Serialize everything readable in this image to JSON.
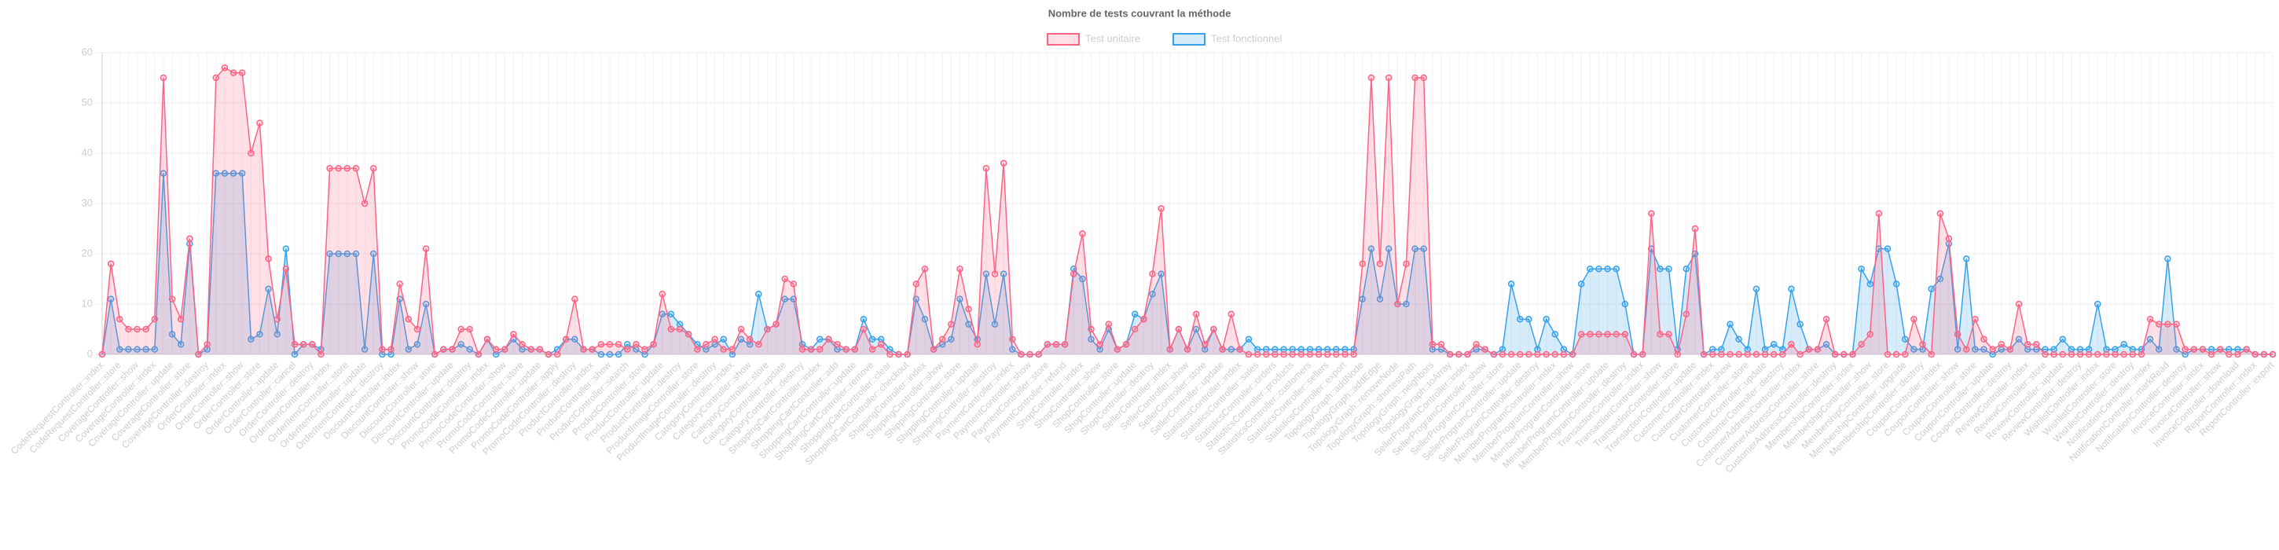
{
  "chart_data": {
    "type": "line",
    "title": "Nombre de tests couvrant la méthode",
    "legend": "top",
    "grid": true,
    "fill": true,
    "ylim": [
      0,
      60
    ],
    "yticks": [
      0,
      10,
      20,
      30,
      40,
      50,
      60
    ],
    "categories": [
      "CodeRequestController::index",
      null,
      "CodeRequestController::store",
      null,
      "CoverageController::show",
      null,
      "CoverageController::index",
      null,
      "CoverageController::update",
      null,
      "CoverageController::store",
      null,
      "CoverageController::destroy",
      null,
      "OrderController::index",
      null,
      "OrderController::show",
      null,
      "OrderController::store",
      null,
      "OrderController::update",
      null,
      "OrderController::cancel",
      null,
      "OrderController::destroy",
      null,
      "OrderItemController::index",
      null,
      "OrderItemController::store",
      null,
      "OrderItemController::update",
      null,
      "OrderItemController::destroy",
      null,
      "DiscountController::index",
      null,
      "DiscountController::show",
      null,
      "DiscountController::store",
      null,
      "DiscountController::update",
      null,
      "DiscountController::destroy",
      null,
      "PromoCodeController::index",
      null,
      "PromoCodeController::show",
      null,
      "PromoCodeController::store",
      null,
      "PromoCodeController::update",
      null,
      "PromoCodeController::apply",
      null,
      "PromoCodeController::destroy",
      null,
      "ProductController::index",
      null,
      "ProductController::show",
      null,
      "ProductController::search",
      null,
      "ProductController::store",
      null,
      "ProductController::update",
      null,
      "ProductController::destroy",
      null,
      "ProductImageController::store",
      null,
      "ProductImageController::destroy",
      null,
      "CategoryController::index",
      null,
      "CategoryController::show",
      null,
      "CategoryController::store",
      null,
      "CategoryController::update",
      null,
      "CategoryController::destroy",
      null,
      "ShoppingCartController::index",
      null,
      "ShoppingCartController::add",
      null,
      "ShoppingCartController::update",
      null,
      "ShoppingCartController::remove",
      null,
      "ShoppingCartController::clear",
      null,
      "ShoppingCartController::checkout",
      null,
      "ShippingController::index",
      null,
      "ShippingController::show",
      null,
      "ShippingController::store",
      null,
      "ShippingController::update",
      null,
      "ShippingController::destroy",
      null,
      "PaymentController::index",
      null,
      "PaymentController::show",
      null,
      "PaymentController::store",
      null,
      "PaymentController::refund",
      null,
      "ShopController::index",
      null,
      "ShopController::show",
      null,
      "ShopController::store",
      null,
      "ShopController::update",
      null,
      "ShopController::destroy",
      null,
      "SellerController::index",
      null,
      "SellerController::show",
      null,
      "SellerController::store",
      null,
      "SellerController::update",
      null,
      "StatisticsController::index",
      null,
      "StatisticsController::sales",
      null,
      "StatisticsController::orders",
      null,
      "StatisticsController::products",
      null,
      "StatisticsController::customers",
      null,
      "StatisticsController::sellers",
      null,
      "StatisticsController::export",
      null,
      "TopologyGraph::addNode",
      null,
      "TopologyGraph::addEdge",
      null,
      "TopologyGraph::removeNode",
      null,
      "TopologyGraph::shortestPath",
      null,
      "TopologyGraph::neighbors",
      null,
      "TopologyGraph::toArray",
      null,
      "SellerProgramController::index",
      null,
      "SellerProgramController::show",
      null,
      "SellerProgramController::store",
      null,
      "SellerProgramController::update",
      null,
      "SellerProgramController::destroy",
      null,
      "MemberProgramController::index",
      null,
      "MemberProgramController::show",
      null,
      "MemberProgramController::store",
      null,
      "MemberProgramController::update",
      null,
      "MemberProgramController::destroy",
      null,
      "TransactionController::index",
      null,
      "TransactionController::show",
      null,
      "TransactionController::store",
      null,
      "TransactionController::update",
      null,
      "CustomerController::index",
      null,
      "CustomerController::show",
      null,
      "CustomerController::store",
      null,
      "CustomerController::update",
      null,
      "CustomerController::destroy",
      null,
      "CustomerAddressController::index",
      null,
      "CustomerAddressController::store",
      null,
      "CustomerAddressController::destroy",
      null,
      "MembershipController::index",
      null,
      "MembershipController::show",
      null,
      "MembershipController::store",
      null,
      "MembershipController::upgrade",
      null,
      "MembershipController::destroy",
      null,
      "CouponController::index",
      null,
      "CouponController::show",
      null,
      "CouponController::store",
      null,
      "CouponController::update",
      null,
      "CouponController::destroy",
      null,
      "ReviewController::index",
      null,
      "ReviewController::store",
      null,
      "ReviewController::update",
      null,
      "ReviewController::destroy",
      null,
      "WishlistController::index",
      null,
      "WishlistController::store",
      null,
      "WishlistController::destroy",
      null,
      "NotificationController::index",
      null,
      "NotificationController::markRead",
      null,
      "NotificationController::destroy",
      null,
      "InvoiceController::index",
      null,
      "InvoiceController::show",
      null,
      "InvoiceController::download",
      null,
      "ReportController::index",
      null,
      "ReportController::export"
    ],
    "series": [
      {
        "name": "Test unitaire",
        "color": "#ff6384",
        "fill_color": "rgba(255,99,132,0.2)",
        "values": [
          0,
          18,
          7,
          5,
          5,
          5,
          7,
          55,
          11,
          7,
          23,
          0,
          2,
          55,
          57,
          56,
          56,
          40,
          46,
          19,
          7,
          17,
          2,
          2,
          2,
          0,
          37,
          37,
          37,
          37,
          30,
          37,
          1,
          1,
          14,
          7,
          5,
          21,
          0,
          1,
          1,
          5,
          5,
          0,
          3,
          1,
          1,
          4,
          2,
          1,
          1,
          0,
          0,
          3,
          11,
          1,
          1,
          2,
          2,
          2,
          1,
          2,
          1,
          2,
          12,
          5,
          5,
          4,
          1,
          2,
          3,
          1,
          1,
          5,
          3,
          2,
          5,
          6,
          15,
          14,
          1,
          1,
          1,
          3,
          2,
          1,
          1,
          5,
          1,
          2,
          0,
          0,
          0,
          14,
          17,
          1,
          3,
          6,
          17,
          9,
          2,
          37,
          16,
          38,
          3,
          0,
          0,
          0,
          2,
          2,
          2,
          16,
          24,
          5,
          2,
          6,
          1,
          2,
          5,
          7,
          16,
          29,
          1,
          5,
          1,
          8,
          2,
          5,
          1,
          8,
          1,
          0,
          0,
          0,
          0,
          0,
          0,
          0,
          0,
          0,
          0,
          0,
          0,
          0,
          18,
          55,
          18,
          55,
          10,
          18,
          55,
          55,
          2,
          2,
          0,
          0,
          0,
          2,
          1,
          0,
          0,
          0,
          0,
          0,
          0,
          0,
          0,
          0,
          0,
          4,
          4,
          4,
          4,
          4,
          4,
          0,
          0,
          28,
          4,
          4,
          0,
          8,
          25,
          0,
          0,
          0,
          0,
          0,
          0,
          0,
          0,
          0,
          0,
          2,
          0,
          1,
          1,
          7,
          0,
          0,
          0,
          2,
          4,
          28,
          0,
          0,
          0,
          7,
          2,
          0,
          28,
          23,
          4,
          1,
          7,
          3,
          1,
          2,
          1,
          10,
          2,
          2,
          0,
          0,
          0,
          0,
          0,
          0,
          0,
          0,
          0,
          0,
          0,
          0,
          7,
          6,
          6,
          6,
          1,
          1,
          1,
          0,
          1,
          0,
          0,
          1,
          0,
          0,
          0
        ]
      },
      {
        "name": "Test fonctionnel",
        "color": "#36a2eb",
        "fill_color": "rgba(54,162,235,0.2)",
        "values": [
          0,
          11,
          1,
          1,
          1,
          1,
          1,
          36,
          4,
          2,
          22,
          0,
          1,
          36,
          36,
          36,
          36,
          3,
          4,
          13,
          4,
          21,
          0,
          2,
          2,
          1,
          20,
          20,
          20,
          20,
          1,
          20,
          0,
          0,
          11,
          1,
          2,
          10,
          0,
          1,
          1,
          2,
          1,
          0,
          3,
          0,
          1,
          3,
          1,
          1,
          1,
          0,
          1,
          3,
          3,
          1,
          1,
          0,
          0,
          0,
          2,
          1,
          0,
          2,
          8,
          8,
          6,
          4,
          2,
          1,
          2,
          3,
          0,
          3,
          2,
          12,
          5,
          6,
          11,
          11,
          2,
          1,
          3,
          3,
          1,
          1,
          1,
          7,
          3,
          3,
          1,
          0,
          0,
          11,
          7,
          1,
          2,
          3,
          11,
          6,
          3,
          16,
          6,
          16,
          1,
          0,
          0,
          0,
          2,
          2,
          2,
          17,
          15,
          3,
          1,
          5,
          1,
          2,
          8,
          7,
          12,
          16,
          1,
          5,
          1,
          5,
          1,
          5,
          1,
          1,
          1,
          3,
          1,
          1,
          1,
          1,
          1,
          1,
          1,
          1,
          1,
          1,
          1,
          1,
          11,
          21,
          11,
          21,
          10,
          10,
          21,
          21,
          1,
          1,
          0,
          0,
          0,
          1,
          1,
          0,
          1,
          14,
          7,
          7,
          1,
          7,
          4,
          1,
          0,
          14,
          17,
          17,
          17,
          17,
          10,
          0,
          0,
          21,
          17,
          17,
          1,
          17,
          20,
          0,
          1,
          1,
          6,
          3,
          1,
          13,
          1,
          2,
          1,
          13,
          6,
          1,
          1,
          2,
          0,
          0,
          0,
          17,
          14,
          21,
          21,
          14,
          3,
          1,
          1,
          13,
          15,
          22,
          1,
          19,
          1,
          1,
          0,
          1,
          1,
          3,
          1,
          1,
          1,
          1,
          3,
          1,
          1,
          1,
          10,
          1,
          1,
          2,
          1,
          1,
          3,
          1,
          19,
          1,
          0,
          1,
          1,
          1,
          1,
          1,
          1,
          1,
          0,
          0,
          0
        ]
      }
    ]
  }
}
